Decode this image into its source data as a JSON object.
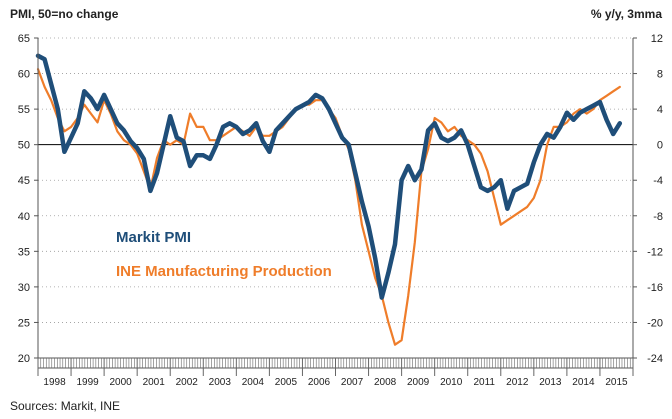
{
  "chart_data": {
    "type": "line",
    "title": "",
    "left_axis_label": "PMI, 50=no change",
    "right_axis_label": "% y/y, 3mma",
    "source": "Sources: Markit, INE",
    "grid": true,
    "left_ylim": [
      20,
      65
    ],
    "left_ticks": [
      20,
      25,
      30,
      35,
      40,
      45,
      50,
      55,
      60,
      65
    ],
    "right_ylim": [
      -24,
      12
    ],
    "right_ticks": [
      -24,
      -20,
      -16,
      -12,
      -8,
      -4,
      0,
      4,
      8,
      12
    ],
    "x_range": [
      1998.0,
      2016.0
    ],
    "x_labels": [
      "1998",
      "1999",
      "2000",
      "2001",
      "2002",
      "2003",
      "2004",
      "2005",
      "2006",
      "2007",
      "2008",
      "2009",
      "2010",
      "2011",
      "2012",
      "2013",
      "2014",
      "2015"
    ],
    "colors": {
      "pmi": "#1f4e79",
      "ine": "#ef7d2a"
    },
    "series": [
      {
        "name": "Markit PMI",
        "axis": "left",
        "color": "#1f4e79",
        "x": [
          1998.0,
          1998.2,
          1998.4,
          1998.6,
          1998.8,
          1999.0,
          1999.2,
          1999.4,
          1999.6,
          1999.8,
          2000.0,
          2000.2,
          2000.4,
          2000.6,
          2000.8,
          2001.0,
          2001.2,
          2001.4,
          2001.6,
          2001.8,
          2002.0,
          2002.2,
          2002.4,
          2002.6,
          2002.8,
          2003.0,
          2003.2,
          2003.4,
          2003.6,
          2003.8,
          2004.0,
          2004.2,
          2004.4,
          2004.6,
          2004.8,
          2005.0,
          2005.2,
          2005.4,
          2005.6,
          2005.8,
          2006.0,
          2006.2,
          2006.4,
          2006.6,
          2006.8,
          2007.0,
          2007.2,
          2007.4,
          2007.6,
          2007.8,
          2008.0,
          2008.2,
          2008.4,
          2008.6,
          2008.8,
          2009.0,
          2009.2,
          2009.4,
          2009.6,
          2009.8,
          2010.0,
          2010.2,
          2010.4,
          2010.6,
          2010.8,
          2011.0,
          2011.2,
          2011.4,
          2011.6,
          2011.8,
          2012.0,
          2012.2,
          2012.4,
          2012.6,
          2012.8,
          2013.0,
          2013.2,
          2013.4,
          2013.6,
          2013.8,
          2014.0,
          2014.2,
          2014.4,
          2014.6,
          2014.8,
          2015.0,
          2015.2,
          2015.4,
          2015.6
        ],
        "values": [
          62.5,
          62.0,
          58.5,
          55.0,
          49.0,
          51.0,
          53.0,
          57.5,
          56.5,
          55.0,
          57.0,
          55.0,
          53.0,
          52.0,
          50.5,
          49.5,
          48.0,
          43.5,
          46.0,
          50.0,
          54.0,
          51.0,
          50.5,
          47.0,
          48.5,
          48.5,
          48.0,
          50.0,
          52.5,
          53.0,
          52.5,
          51.5,
          52.0,
          53.0,
          50.5,
          49.0,
          52.0,
          53.0,
          54.0,
          55.0,
          55.5,
          56.0,
          57.0,
          56.5,
          55.0,
          53.0,
          51.0,
          50.0,
          46.0,
          42.0,
          38.5,
          34.0,
          28.5,
          32.0,
          36.0,
          45.0,
          47.0,
          45.0,
          46.5,
          52.0,
          53.0,
          51.0,
          50.5,
          51.0,
          52.0,
          50.0,
          47.0,
          44.0,
          43.5,
          44.0,
          45.0,
          41.0,
          43.5,
          44.0,
          44.5,
          47.5,
          50.0,
          51.5,
          51.0,
          52.5,
          54.5,
          53.5,
          54.5,
          55.0,
          55.5,
          56.0,
          53.5,
          51.5,
          53.0
        ]
      },
      {
        "name": "INE Manufacturing Production",
        "axis": "right",
        "color": "#ef7d2a",
        "x": [
          1998.0,
          1998.2,
          1998.4,
          1998.6,
          1998.8,
          1999.0,
          1999.2,
          1999.4,
          1999.6,
          1999.8,
          2000.0,
          2000.2,
          2000.4,
          2000.6,
          2000.8,
          2001.0,
          2001.2,
          2001.4,
          2001.6,
          2001.8,
          2002.0,
          2002.2,
          2002.4,
          2002.6,
          2002.8,
          2003.0,
          2003.2,
          2003.4,
          2003.6,
          2003.8,
          2004.0,
          2004.2,
          2004.4,
          2004.6,
          2004.8,
          2005.0,
          2005.2,
          2005.4,
          2005.6,
          2005.8,
          2006.0,
          2006.2,
          2006.4,
          2006.6,
          2006.8,
          2007.0,
          2007.2,
          2007.4,
          2007.6,
          2007.8,
          2008.0,
          2008.2,
          2008.4,
          2008.6,
          2008.8,
          2009.0,
          2009.2,
          2009.4,
          2009.6,
          2009.8,
          2010.0,
          2010.2,
          2010.4,
          2010.6,
          2010.8,
          2011.0,
          2011.2,
          2011.4,
          2011.6,
          2011.8,
          2012.0,
          2012.2,
          2012.4,
          2012.6,
          2012.8,
          2013.0,
          2013.2,
          2013.4,
          2013.6,
          2013.8,
          2014.0,
          2014.2,
          2014.4,
          2014.6,
          2014.8,
          2015.0,
          2015.2,
          2015.4,
          2015.6
        ],
        "values": [
          8.5,
          6.5,
          5.0,
          3.0,
          1.5,
          2.0,
          3.0,
          4.5,
          3.5,
          2.5,
          5.0,
          3.5,
          1.5,
          0.5,
          0.0,
          -1.0,
          -3.0,
          -5.0,
          -1.5,
          0.5,
          0.0,
          0.5,
          0.0,
          3.5,
          2.0,
          2.0,
          0.5,
          0.5,
          1.0,
          1.5,
          2.0,
          1.5,
          1.0,
          2.0,
          1.0,
          1.0,
          1.5,
          2.0,
          3.0,
          4.0,
          4.5,
          4.5,
          5.0,
          5.0,
          4.0,
          3.0,
          1.0,
          -0.5,
          -4.0,
          -9.0,
          -12.0,
          -15.0,
          -17.0,
          -20.0,
          -22.5,
          -22.0,
          -17.0,
          -11.0,
          -3.0,
          -0.5,
          3.0,
          2.5,
          1.5,
          2.0,
          1.0,
          0.5,
          0.0,
          -1.0,
          -3.0,
          -6.0,
          -9.0,
          -8.5,
          -8.0,
          -7.5,
          -7.0,
          -6.0,
          -4.0,
          0.0,
          2.0,
          2.0,
          2.5,
          3.5,
          4.0,
          3.5,
          4.0,
          5.0,
          5.5,
          6.0,
          6.5
        ]
      }
    ],
    "annotations": [
      {
        "text": "Markit PMI",
        "color": "#1f4e79"
      },
      {
        "text": "INE Manufacturing Production",
        "color": "#ef7d2a"
      }
    ]
  }
}
